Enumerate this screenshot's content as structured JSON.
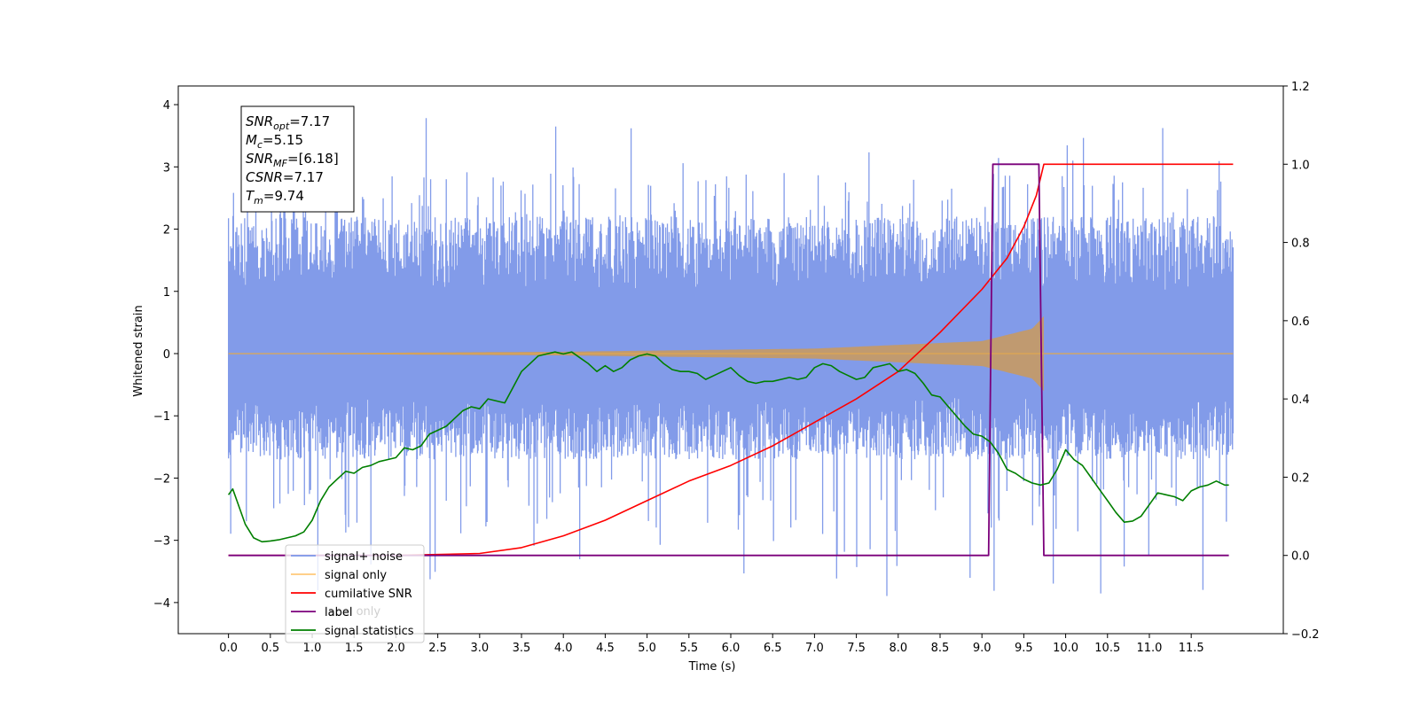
{
  "chart_data": {
    "type": "line",
    "xlabel": "Time (s)",
    "ylabel": "Whitened strain",
    "xlim": [
      -0.6,
      12.6
    ],
    "ylim_left": [
      -4.5,
      4.3
    ],
    "ylim_right": [
      -0.2,
      1.2
    ],
    "x_ticks": [
      0.0,
      0.5,
      1.0,
      1.5,
      2.0,
      2.5,
      3.0,
      3.5,
      4.0,
      4.5,
      5.0,
      5.5,
      6.0,
      6.5,
      7.0,
      7.5,
      8.0,
      8.5,
      9.0,
      9.5,
      10.0,
      10.5,
      11.0,
      11.5
    ],
    "x_tick_labels": [
      "0.0",
      "0.5",
      "1.0",
      "1.5",
      "2.0",
      "2.5",
      "3.0",
      "3.5",
      "4.0",
      "4.5",
      "5.0",
      "5.5",
      "6.0",
      "6.5",
      "7.0",
      "7.5",
      "8.0",
      "8.5",
      "9.0",
      "9.5",
      "10.0",
      "10.5",
      "11.0",
      "11.5"
    ],
    "y_ticks_left": [
      -4,
      -3,
      -2,
      -1,
      0,
      1,
      2,
      3,
      4
    ],
    "y_tick_labels_left": [
      "−4",
      "−3",
      "−2",
      "−1",
      "0",
      "1",
      "2",
      "3",
      "4"
    ],
    "y_ticks_right": [
      -0.2,
      0.0,
      0.2,
      0.4,
      0.6,
      0.8,
      1.0,
      1.2
    ],
    "y_tick_labels_right": [
      "−0.2",
      "0.0",
      "0.2",
      "0.4",
      "0.6",
      "0.8",
      "1.0",
      "1.2"
    ],
    "legend_position": "lower-left",
    "legend": [
      {
        "label": "signal+ noise",
        "color": "#7b96e8"
      },
      {
        "label": "signal only",
        "color": "#ffc87a"
      },
      {
        "label": "cumilative SNR",
        "color": "#ff0000"
      },
      {
        "label": "label",
        "color": "#7b007b"
      },
      {
        "label": "signal statistics",
        "color": "#007f00"
      }
    ],
    "hidden_legend_text": "label only",
    "annotation": [
      {
        "base": "SNR",
        "sub": "opt",
        "value": "=7.17"
      },
      {
        "base": "M",
        "sub": "c",
        "value": "=5.15"
      },
      {
        "base": "SNR",
        "sub": "MF",
        "value": "=[6.18]"
      },
      {
        "base": "CSNR",
        "sub": "",
        "value": "=7.17"
      },
      {
        "base": "T",
        "sub": "m",
        "value": "=9.74"
      }
    ],
    "noise": {
      "axis": "left",
      "x_range": [
        0.0,
        12.0
      ],
      "envelope_upper_typical": 2.2,
      "envelope_lower_typical": -1.7,
      "max": 3.9,
      "min": -4.1,
      "color": "#7b96e8"
    },
    "signal_only": {
      "axis": "left",
      "x_range": [
        0.0,
        9.74
      ],
      "amplitude_at": {
        "x": [
          0.0,
          4.0,
          7.0,
          9.0,
          9.6,
          9.74
        ],
        "amp": [
          0.0,
          0.03,
          0.08,
          0.2,
          0.4,
          0.6
        ]
      },
      "color": "#c09a70"
    },
    "cumulative_snr": {
      "axis": "right",
      "x": [
        0.0,
        2.0,
        3.0,
        3.5,
        4.0,
        4.5,
        5.0,
        5.5,
        6.0,
        6.5,
        7.0,
        7.5,
        8.0,
        8.5,
        9.0,
        9.3,
        9.5,
        9.65,
        9.74,
        12.0
      ],
      "y": [
        0.0,
        0.0,
        0.005,
        0.02,
        0.05,
        0.09,
        0.14,
        0.19,
        0.23,
        0.28,
        0.34,
        0.4,
        0.47,
        0.57,
        0.68,
        0.76,
        0.84,
        0.92,
        1.0,
        1.0
      ],
      "color": "#ff0000"
    },
    "label_line": {
      "axis": "right",
      "x": [
        0.0,
        9.08,
        9.13,
        9.68,
        9.74,
        11.95
      ],
      "y": [
        0.0,
        0.0,
        1.0,
        1.0,
        0.0,
        0.0
      ],
      "color": "#7b007b"
    },
    "signal_statistics": {
      "axis": "right",
      "x": [
        0.0,
        0.05,
        0.1,
        0.2,
        0.3,
        0.4,
        0.5,
        0.6,
        0.7,
        0.8,
        0.9,
        1.0,
        1.1,
        1.2,
        1.3,
        1.4,
        1.5,
        1.6,
        1.7,
        1.8,
        1.9,
        2.0,
        2.1,
        2.2,
        2.3,
        2.4,
        2.5,
        2.6,
        2.7,
        2.8,
        2.9,
        3.0,
        3.1,
        3.2,
        3.3,
        3.4,
        3.5,
        3.6,
        3.7,
        3.8,
        3.9,
        4.0,
        4.1,
        4.2,
        4.3,
        4.4,
        4.5,
        4.6,
        4.7,
        4.8,
        4.9,
        5.0,
        5.1,
        5.2,
        5.3,
        5.4,
        5.5,
        5.6,
        5.7,
        5.8,
        5.9,
        6.0,
        6.1,
        6.2,
        6.3,
        6.4,
        6.5,
        6.6,
        6.7,
        6.8,
        6.9,
        7.0,
        7.1,
        7.2,
        7.3,
        7.4,
        7.5,
        7.6,
        7.7,
        7.8,
        7.9,
        8.0,
        8.1,
        8.2,
        8.3,
        8.4,
        8.5,
        8.6,
        8.7,
        8.8,
        8.9,
        9.0,
        9.1,
        9.2,
        9.3,
        9.4,
        9.5,
        9.6,
        9.7,
        9.8,
        9.9,
        10.0,
        10.1,
        10.2,
        10.3,
        10.4,
        10.5,
        10.6,
        10.7,
        10.8,
        10.9,
        11.0,
        11.1,
        11.2,
        11.3,
        11.4,
        11.5,
        11.6,
        11.7,
        11.8,
        11.9,
        11.95
      ],
      "y": [
        0.155,
        0.17,
        0.14,
        0.08,
        0.045,
        0.035,
        0.037,
        0.04,
        0.045,
        0.05,
        0.06,
        0.09,
        0.14,
        0.175,
        0.195,
        0.215,
        0.21,
        0.225,
        0.23,
        0.24,
        0.245,
        0.25,
        0.275,
        0.27,
        0.28,
        0.31,
        0.32,
        0.33,
        0.35,
        0.37,
        0.38,
        0.375,
        0.4,
        0.395,
        0.39,
        0.43,
        0.47,
        0.49,
        0.51,
        0.515,
        0.52,
        0.515,
        0.52,
        0.505,
        0.49,
        0.47,
        0.485,
        0.47,
        0.48,
        0.5,
        0.51,
        0.515,
        0.51,
        0.49,
        0.475,
        0.47,
        0.47,
        0.465,
        0.45,
        0.46,
        0.47,
        0.48,
        0.46,
        0.445,
        0.44,
        0.445,
        0.445,
        0.45,
        0.455,
        0.45,
        0.455,
        0.48,
        0.49,
        0.485,
        0.47,
        0.46,
        0.45,
        0.455,
        0.48,
        0.485,
        0.49,
        0.47,
        0.475,
        0.465,
        0.44,
        0.41,
        0.405,
        0.38,
        0.355,
        0.33,
        0.31,
        0.305,
        0.29,
        0.26,
        0.22,
        0.21,
        0.195,
        0.185,
        0.18,
        0.185,
        0.22,
        0.27,
        0.245,
        0.23,
        0.2,
        0.17,
        0.14,
        0.11,
        0.085,
        0.088,
        0.1,
        0.13,
        0.16,
        0.155,
        0.15,
        0.14,
        0.165,
        0.175,
        0.18,
        0.19,
        0.18,
        0.18
      ],
      "color": "#007f00"
    }
  }
}
